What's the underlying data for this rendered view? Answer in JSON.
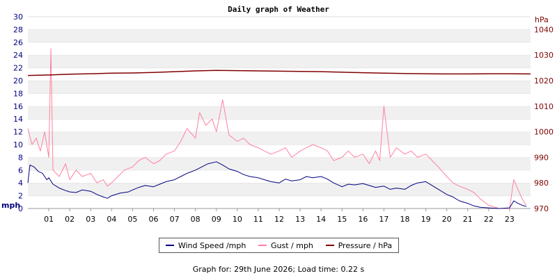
{
  "chart_data": {
    "type": "line",
    "title": "Daily graph of Weather",
    "x_ticks": [
      "01",
      "02",
      "03",
      "04",
      "05",
      "06",
      "07",
      "08",
      "09",
      "10",
      "11",
      "12",
      "13",
      "14",
      "15",
      "16",
      "17",
      "18",
      "19",
      "20",
      "21",
      "22",
      "23"
    ],
    "xlim": [
      0,
      24
    ],
    "y_left": {
      "unit": "mph",
      "ticks": [
        "0",
        "2",
        "4",
        "6",
        "8",
        "10",
        "12",
        "14",
        "16",
        "18",
        "20",
        "22",
        "24",
        "26",
        "28",
        "30"
      ],
      "ylim": [
        0,
        30
      ]
    },
    "y_right": {
      "unit": "hPa",
      "ticks": [
        "970",
        "980",
        "990",
        "1000",
        "1010",
        "1020",
        "1030",
        "1040"
      ],
      "ylim": [
        970,
        1045
      ]
    },
    "grid": "horizontal-bands",
    "legend_position": "bottom",
    "series": [
      {
        "name": "Wind Speed /mph",
        "color": "#000080",
        "axis": "left",
        "x": [
          0.0,
          0.1,
          0.3,
          0.5,
          0.7,
          0.9,
          1.0,
          1.2,
          1.5,
          1.8,
          2.0,
          2.3,
          2.6,
          3.0,
          3.3,
          3.6,
          3.8,
          4.0,
          4.4,
          4.8,
          5.0,
          5.3,
          5.6,
          6.0,
          6.3,
          6.6,
          7.0,
          7.3,
          7.6,
          8.0,
          8.3,
          8.6,
          9.0,
          9.3,
          9.6,
          10.0,
          10.3,
          10.6,
          11.0,
          11.3,
          11.6,
          12.0,
          12.3,
          12.6,
          13.0,
          13.3,
          13.6,
          14.0,
          14.3,
          14.6,
          15.0,
          15.3,
          15.6,
          16.0,
          16.3,
          16.6,
          17.0,
          17.3,
          17.6,
          18.0,
          18.3,
          18.6,
          19.0,
          19.3,
          19.6,
          20.0,
          20.3,
          20.6,
          21.0,
          21.3,
          21.6,
          22.0,
          22.5,
          23.0,
          23.2,
          23.4,
          23.6,
          23.8
        ],
        "values": [
          4.0,
          6.8,
          6.5,
          5.8,
          5.5,
          4.5,
          4.8,
          3.8,
          3.2,
          2.8,
          2.6,
          2.5,
          2.9,
          2.7,
          2.2,
          1.8,
          1.6,
          2.0,
          2.4,
          2.6,
          2.9,
          3.3,
          3.6,
          3.4,
          3.8,
          4.2,
          4.5,
          5.0,
          5.5,
          6.0,
          6.5,
          7.0,
          7.3,
          6.8,
          6.2,
          5.8,
          5.3,
          5.0,
          4.8,
          4.5,
          4.2,
          4.0,
          4.6,
          4.3,
          4.5,
          5.0,
          4.8,
          5.0,
          4.6,
          4.0,
          3.4,
          3.8,
          3.7,
          3.9,
          3.6,
          3.3,
          3.5,
          3.0,
          3.2,
          3.0,
          3.6,
          4.0,
          4.2,
          3.6,
          3.0,
          2.2,
          1.8,
          1.2,
          0.8,
          0.4,
          0.2,
          0.1,
          0.0,
          0.1,
          1.2,
          0.8,
          0.5,
          0.3
        ]
      },
      {
        "name": "Gust / mph",
        "color": "#ff80a0",
        "axis": "left",
        "x": [
          0.0,
          0.2,
          0.4,
          0.6,
          0.8,
          1.0,
          1.1,
          1.2,
          1.5,
          1.8,
          2.0,
          2.3,
          2.6,
          3.0,
          3.3,
          3.6,
          3.8,
          4.0,
          4.3,
          4.6,
          5.0,
          5.3,
          5.6,
          6.0,
          6.3,
          6.6,
          7.0,
          7.3,
          7.6,
          8.0,
          8.2,
          8.5,
          8.8,
          9.0,
          9.3,
          9.6,
          10.0,
          10.3,
          10.6,
          11.0,
          11.3,
          11.6,
          12.0,
          12.3,
          12.6,
          13.0,
          13.3,
          13.6,
          14.0,
          14.3,
          14.6,
          15.0,
          15.3,
          15.6,
          16.0,
          16.3,
          16.6,
          16.8,
          17.0,
          17.3,
          17.6,
          18.0,
          18.3,
          18.6,
          19.0,
          19.3,
          19.6,
          20.0,
          20.3,
          20.6,
          21.0,
          21.3,
          21.6,
          22.0,
          22.5,
          23.0,
          23.2,
          23.4,
          23.6,
          23.8
        ],
        "values": [
          12.5,
          10.0,
          11.0,
          9.0,
          12.0,
          8.0,
          25.0,
          6.0,
          5.0,
          7.0,
          4.5,
          6.0,
          5.0,
          5.5,
          4.0,
          4.5,
          3.5,
          4.0,
          5.0,
          6.0,
          6.5,
          7.5,
          8.0,
          7.0,
          7.5,
          8.5,
          9.0,
          10.5,
          12.5,
          11.0,
          15.0,
          13.0,
          14.0,
          12.0,
          17.0,
          11.5,
          10.5,
          11.0,
          10.0,
          9.5,
          9.0,
          8.5,
          9.0,
          9.5,
          8.0,
          9.0,
          9.5,
          10.0,
          9.5,
          9.0,
          7.5,
          8.0,
          9.0,
          8.0,
          8.5,
          7.0,
          9.0,
          7.5,
          16.0,
          8.0,
          9.5,
          8.5,
          9.0,
          8.0,
          8.5,
          7.5,
          6.5,
          5.0,
          4.0,
          3.5,
          3.0,
          2.5,
          1.5,
          0.5,
          0.0,
          0.0,
          4.5,
          3.0,
          1.5,
          0.5
        ]
      },
      {
        "name": "Pressure / hPa",
        "color": "#800000",
        "axis": "right",
        "x": [
          0,
          1,
          2,
          3,
          4,
          5,
          6,
          7,
          8,
          9,
          10,
          11,
          12,
          13,
          14,
          15,
          16,
          17,
          18,
          19,
          20,
          21,
          22,
          23,
          24
        ],
        "values": [
          1022.0,
          1022.2,
          1022.5,
          1022.7,
          1022.9,
          1023.0,
          1023.2,
          1023.5,
          1023.8,
          1024.0,
          1023.9,
          1023.8,
          1023.7,
          1023.6,
          1023.5,
          1023.3,
          1023.1,
          1022.9,
          1022.8,
          1022.7,
          1022.6,
          1022.6,
          1022.7,
          1022.7,
          1022.6
        ]
      }
    ]
  },
  "footer": "Graph for: 29th June 2026; Load time: 0.22 s"
}
